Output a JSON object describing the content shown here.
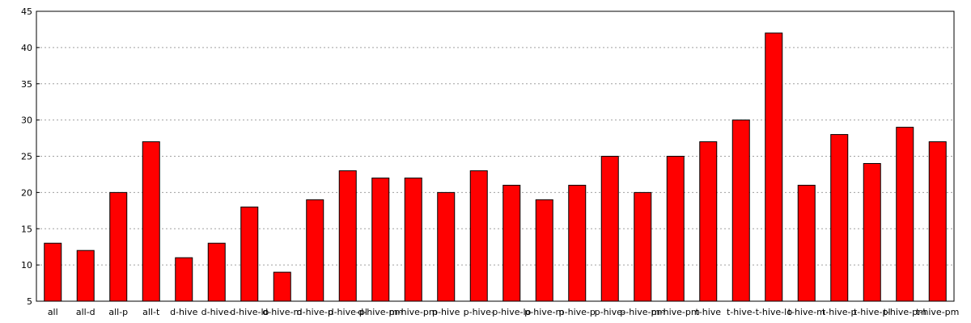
{
  "chart_data": {
    "type": "bar",
    "title": "",
    "xlabel": "",
    "ylabel": "",
    "ylim": [
      5,
      45
    ],
    "yticks": [
      5,
      10,
      15,
      20,
      25,
      30,
      35,
      40,
      45
    ],
    "grid": true,
    "bar_color": "#ff0000",
    "categories": [
      "all",
      "all-d",
      "all-p",
      "all-t",
      "d-hive",
      "d-hive-",
      "d-hive-lo",
      "d-hive-m",
      "d-hive-p",
      "d-hive-pl",
      "d-hive-pm",
      "m-hive-pm",
      "p-hive",
      "p-hive-",
      "p-hive-lo",
      "p-hive-m",
      "p-hive-p",
      "p-hive-",
      "p-hive-pm",
      "m-hive-pm",
      "t-hive",
      "t-hive-",
      "t-hive-lo",
      "t-hive-m",
      "t-hive-p",
      "t-hive-pl",
      "t-hive-pm",
      "t-hive-pm"
    ],
    "values": [
      13,
      12,
      20,
      27,
      11,
      13,
      18,
      9,
      19,
      23,
      22,
      22,
      20,
      23,
      21,
      19,
      21,
      25,
      20,
      25,
      27,
      30,
      42,
      21,
      28,
      24,
      29,
      27
    ]
  }
}
